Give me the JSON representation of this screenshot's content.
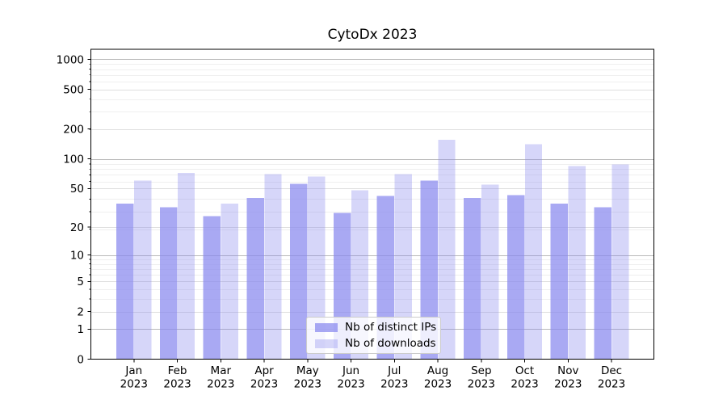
{
  "chart_data": {
    "type": "bar",
    "title": "CytoDx 2023",
    "months": [
      "Jan",
      "Feb",
      "Mar",
      "Apr",
      "May",
      "Jun",
      "Jul",
      "Aug",
      "Sep",
      "Oct",
      "Nov",
      "Dec"
    ],
    "year": "2023",
    "series": [
      {
        "name": "Nb of distinct IPs",
        "color": "#8888ee",
        "opacity": 0.72,
        "values": [
          35,
          32,
          26,
          40,
          56,
          28,
          42,
          60,
          40,
          43,
          35,
          32
        ]
      },
      {
        "name": "Nb of downloads",
        "color": "#8888ee",
        "opacity": 0.34,
        "values": [
          60,
          72,
          35,
          70,
          66,
          48,
          70,
          156,
          55,
          140,
          85,
          88
        ]
      }
    ],
    "yscale": "log10(value+1)",
    "yticks": [
      0,
      1,
      2,
      5,
      10,
      20,
      50,
      100,
      200,
      500,
      1000
    ],
    "ylim": [
      0,
      1260
    ],
    "grid": true,
    "legend_position": "lower center"
  },
  "colors": {
    "bar_base": "#8888ee",
    "grid_major": "#b9b9b9",
    "grid_mid": "#dedede",
    "grid_minor": "#efefef",
    "axis_frame": "#000000",
    "tick_label": "#000000",
    "legend_border": "#cccccc"
  }
}
